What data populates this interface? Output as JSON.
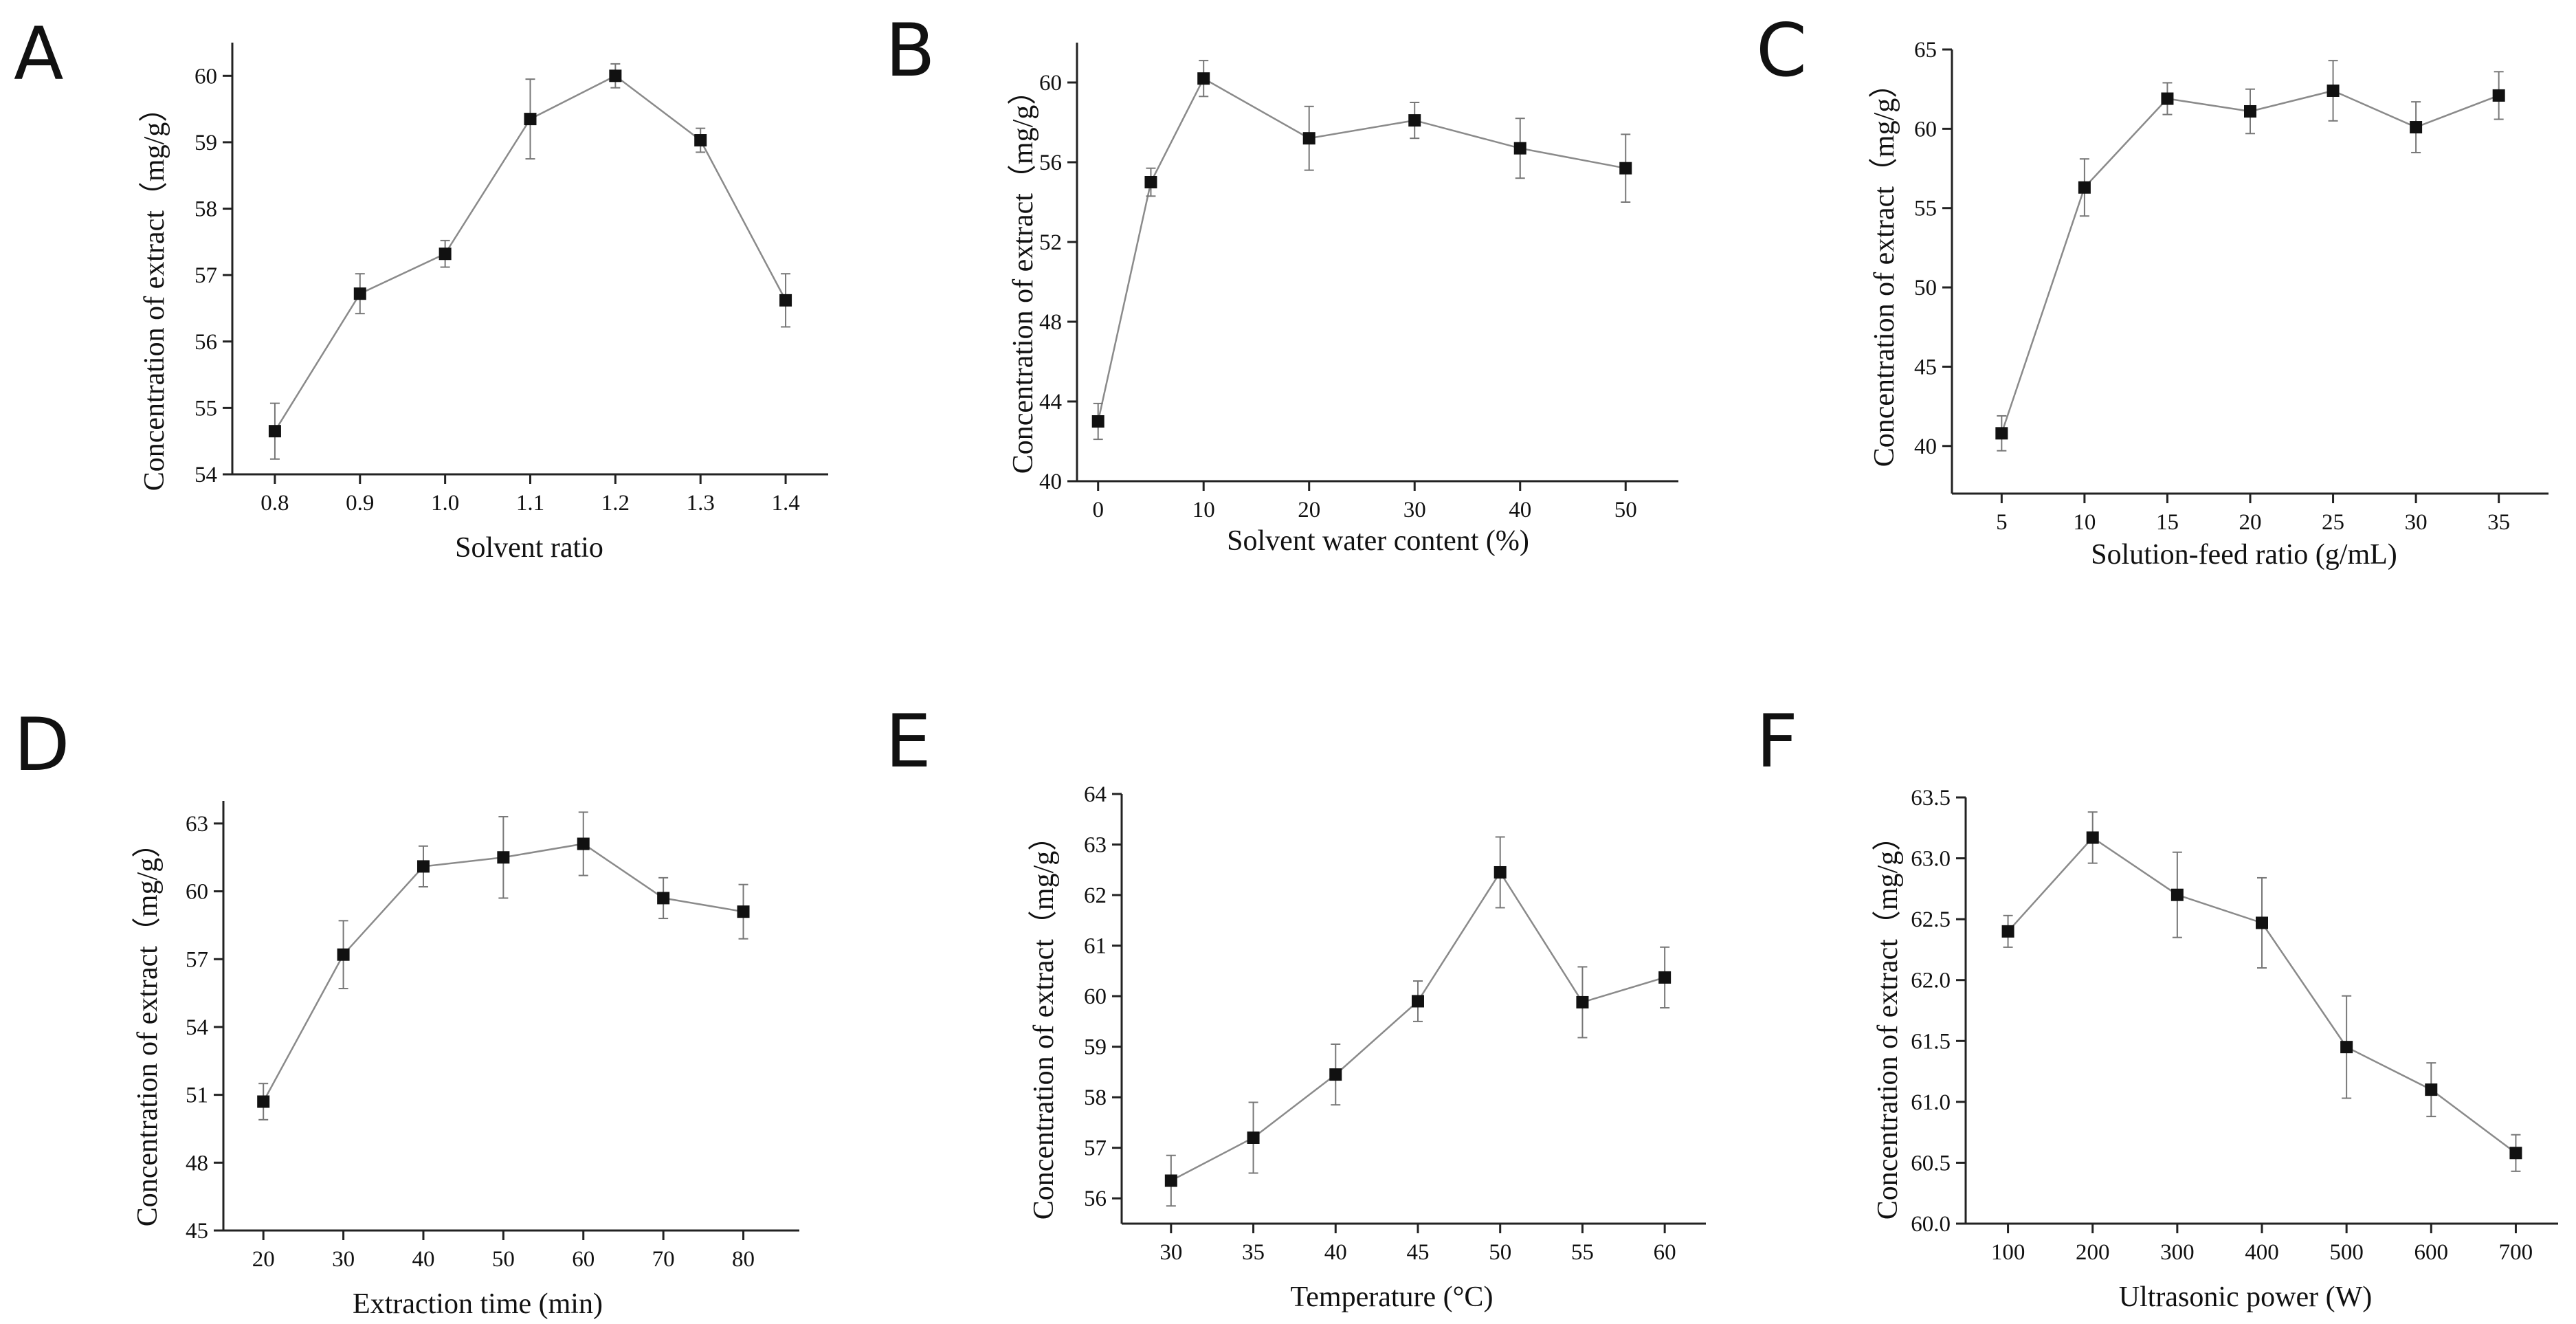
{
  "figure": {
    "panel_labels": [
      "A",
      "B",
      "C",
      "D",
      "E",
      "F"
    ]
  },
  "chart_data": [
    {
      "panel": "A",
      "type": "line",
      "title": "",
      "xlabel": "Solvent ratio",
      "ylabel": "Concentration of extract（mg/g）",
      "x": [
        0.8,
        0.9,
        1.0,
        1.1,
        1.2,
        1.3,
        1.4
      ],
      "y": [
        54.65,
        56.72,
        57.32,
        59.35,
        60.0,
        59.03,
        56.62
      ],
      "err": [
        0.42,
        0.3,
        0.2,
        0.6,
        0.18,
        0.18,
        0.4
      ],
      "xlim": [
        0.75,
        1.45
      ],
      "ylim": [
        54,
        60.5
      ],
      "xticks": [
        0.8,
        0.9,
        1.0,
        1.1,
        1.2,
        1.3,
        1.4
      ],
      "xtick_labels": [
        "0.8",
        "0.9",
        "1.0",
        "1.1",
        "1.2",
        "1.3",
        "1.4"
      ],
      "yticks": [
        54,
        55,
        56,
        57,
        58,
        59,
        60
      ],
      "ytick_labels": [
        "54",
        "55",
        "56",
        "57",
        "58",
        "59",
        "60"
      ],
      "marker": "square"
    },
    {
      "panel": "B",
      "type": "line",
      "title": "",
      "xlabel": "Solvent water content (%)",
      "ylabel": "Concentration of extract（mg/g）",
      "x": [
        0,
        5,
        10,
        20,
        30,
        40,
        50
      ],
      "y": [
        43.0,
        55.0,
        60.2,
        57.2,
        58.1,
        56.7,
        55.7
      ],
      "err": [
        0.9,
        0.7,
        0.9,
        1.6,
        0.9,
        1.5,
        1.7
      ],
      "xlim": [
        -2,
        55
      ],
      "ylim": [
        40,
        62
      ],
      "xticks": [
        0,
        10,
        20,
        30,
        40,
        50
      ],
      "xtick_labels": [
        "0",
        "10",
        "20",
        "30",
        "40",
        "50"
      ],
      "yticks": [
        40,
        44,
        48,
        52,
        56,
        60
      ],
      "ytick_labels": [
        "40",
        "44",
        "48",
        "52",
        "56",
        "60"
      ],
      "marker": "square"
    },
    {
      "panel": "C",
      "type": "line",
      "title": "",
      "xlabel": "Solution-feed ratio (g/mL)",
      "ylabel": "Concentration of extract（mg/g）",
      "x": [
        5,
        10,
        15,
        20,
        25,
        30,
        35
      ],
      "y": [
        40.8,
        56.3,
        61.9,
        61.1,
        62.4,
        60.1,
        62.1
      ],
      "err": [
        1.1,
        1.8,
        1.0,
        1.4,
        1.9,
        1.6,
        1.5
      ],
      "xlim": [
        2,
        38
      ],
      "ylim": [
        37,
        65
      ],
      "xticks": [
        5,
        10,
        15,
        20,
        25,
        30,
        35
      ],
      "xtick_labels": [
        "5",
        "10",
        "15",
        "20",
        "25",
        "30",
        "35"
      ],
      "yticks": [
        40,
        45,
        50,
        55,
        60,
        65
      ],
      "ytick_labels": [
        "40",
        "45",
        "50",
        "55",
        "60",
        "65"
      ],
      "marker": "square"
    },
    {
      "panel": "D",
      "type": "line",
      "title": "",
      "xlabel": "Extraction time (min)",
      "ylabel": "Concentration of extract（mg/g）",
      "x": [
        20,
        30,
        40,
        50,
        60,
        70,
        80
      ],
      "y": [
        50.7,
        57.2,
        61.1,
        61.5,
        62.1,
        59.7,
        59.1
      ],
      "err": [
        0.8,
        1.5,
        0.9,
        1.8,
        1.4,
        0.9,
        1.2
      ],
      "xlim": [
        15,
        87
      ],
      "ylim": [
        45,
        64
      ],
      "xticks": [
        20,
        30,
        40,
        50,
        60,
        70,
        80
      ],
      "xtick_labels": [
        "20",
        "30",
        "40",
        "50",
        "60",
        "70",
        "80"
      ],
      "yticks": [
        45,
        48,
        51,
        54,
        57,
        60,
        63
      ],
      "ytick_labels": [
        "45",
        "48",
        "51",
        "54",
        "57",
        "60",
        "63"
      ],
      "marker": "square"
    },
    {
      "panel": "E",
      "type": "line",
      "title": "",
      "xlabel": "Temperature (°C)",
      "ylabel": "Concentration of extract（mg/g）",
      "x": [
        30,
        35,
        40,
        45,
        50,
        55,
        60
      ],
      "y": [
        56.35,
        57.2,
        58.45,
        59.9,
        62.45,
        59.88,
        60.37
      ],
      "err": [
        0.5,
        0.7,
        0.6,
        0.4,
        0.7,
        0.7,
        0.6
      ],
      "xlim": [
        27,
        62.5
      ],
      "ylim": [
        55.5,
        64
      ],
      "xticks": [
        30,
        35,
        40,
        45,
        50,
        55,
        60
      ],
      "xtick_labels": [
        "30",
        "35",
        "40",
        "45",
        "50",
        "55",
        "60"
      ],
      "yticks": [
        56,
        57,
        58,
        59,
        60,
        61,
        62,
        63,
        64
      ],
      "ytick_labels": [
        "56",
        "57",
        "58",
        "59",
        "60",
        "61",
        "62",
        "63",
        "64"
      ],
      "marker": "square"
    },
    {
      "panel": "F",
      "type": "line",
      "title": "",
      "xlabel": "Ultrasonic power (W)",
      "ylabel": "Concentration of extract（mg/g）",
      "x": [
        100,
        200,
        300,
        400,
        500,
        600,
        700
      ],
      "y": [
        62.4,
        63.17,
        62.7,
        62.47,
        61.45,
        61.1,
        60.58
      ],
      "err": [
        0.13,
        0.21,
        0.35,
        0.37,
        0.42,
        0.22,
        0.15
      ],
      "xlim": [
        50,
        750
      ],
      "ylim": [
        60,
        63.5
      ],
      "xticks": [
        100,
        200,
        300,
        400,
        500,
        600,
        700
      ],
      "xtick_labels": [
        "100",
        "200",
        "300",
        "400",
        "500",
        "600",
        "700"
      ],
      "yticks": [
        60.0,
        60.5,
        61.0,
        61.5,
        62.0,
        62.5,
        63.0,
        63.5
      ],
      "ytick_labels": [
        "60.0",
        "60.5",
        "61.0",
        "61.5",
        "62.0",
        "62.5",
        "63.0",
        "63.5"
      ],
      "marker": "square"
    }
  ]
}
